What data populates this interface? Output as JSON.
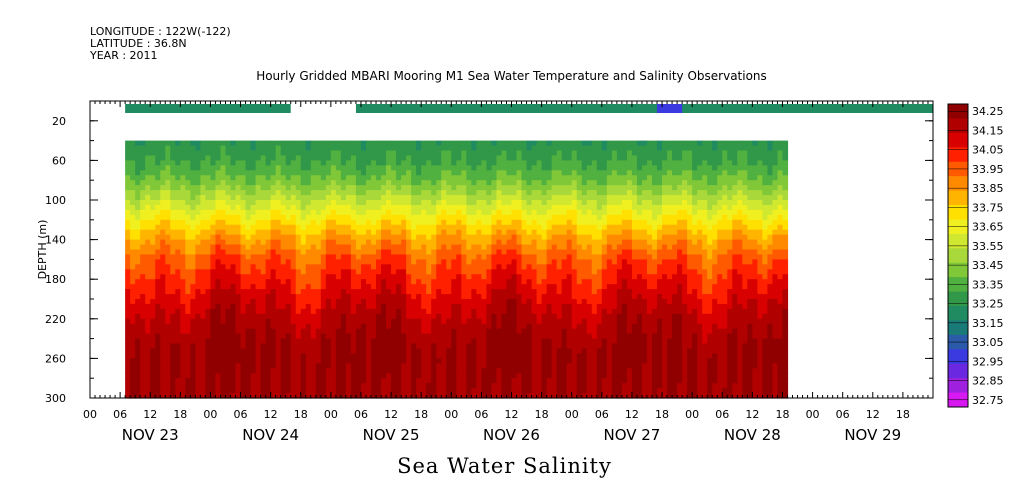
{
  "header": {
    "longitude": "LONGITUDE : 122W(-122)",
    "latitude": "LATITUDE : 36.8N",
    "year": "YEAR : 2011"
  },
  "chart_title": "Hourly Gridded MBARI Mooring M1 Sea Water Temperature and Salinity Observations",
  "bottom_title": "Sea Water Salinity",
  "chart_data": {
    "type": "heatmap",
    "title": "Hourly Gridded MBARI Mooring M1 Sea Water Temperature and Salinity Observations",
    "xlabel": "",
    "ylabel": "DEPTH (m)",
    "x_range_hours": [
      0,
      168
    ],
    "x_hour_tick_labels": [
      "00",
      "06",
      "12",
      "18",
      "00",
      "06",
      "12",
      "18",
      "00",
      "06",
      "12",
      "18",
      "00",
      "06",
      "12",
      "18",
      "00",
      "06",
      "12",
      "18",
      "00",
      "06",
      "12",
      "18",
      "00",
      "06",
      "12",
      "18"
    ],
    "x_day_labels": [
      "NOV 23",
      "NOV 24",
      "NOV 25",
      "NOV 26",
      "NOV 27",
      "NOV 28",
      "NOV 29"
    ],
    "ylim": [
      300,
      0
    ],
    "y_tick_labels": [
      "20",
      "60",
      "100",
      "140",
      "180",
      "220",
      "260",
      "300"
    ],
    "colorbar_levels": [
      "34.25",
      "34.15",
      "34.05",
      "33.95",
      "33.85",
      "33.75",
      "33.65",
      "33.55",
      "33.45",
      "33.35",
      "33.25",
      "33.15",
      "33.05",
      "32.95",
      "32.85",
      "32.75"
    ],
    "colorbar_colors": [
      "#900000",
      "#b00000",
      "#d80000",
      "#ff2000",
      "#ff5a00",
      "#ff8a00",
      "#ffb400",
      "#ffe000",
      "#f0f020",
      "#d0e830",
      "#a8d83a",
      "#80c838",
      "#50b040",
      "#309848",
      "#208a60",
      "#1a7a78",
      "#2a5aa8",
      "#3a3ae0",
      "#6a28e0",
      "#a020e0",
      "#d818f0"
    ],
    "surface_sensor_segments": [
      {
        "start_hour": 7,
        "end_hour": 40,
        "level": 33.2
      },
      {
        "start_hour": 53,
        "end_hour": 168,
        "level": 33.2
      },
      {
        "start_hour": 113,
        "end_hour": 118,
        "level": 32.95
      }
    ],
    "profile_coverage": {
      "start_hour": 7,
      "end_hour": 139,
      "top_depth_m": 40,
      "bottom_depth_m": 300
    },
    "depth_profile_mean": [
      {
        "depth": 40,
        "value": 33.25
      },
      {
        "depth": 60,
        "value": 33.3
      },
      {
        "depth": 80,
        "value": 33.4
      },
      {
        "depth": 100,
        "value": 33.55
      },
      {
        "depth": 120,
        "value": 33.7
      },
      {
        "depth": 140,
        "value": 33.85
      },
      {
        "depth": 160,
        "value": 33.97
      },
      {
        "depth": 180,
        "value": 34.05
      },
      {
        "depth": 200,
        "value": 34.12
      },
      {
        "depth": 220,
        "value": 34.18
      },
      {
        "depth": 240,
        "value": 34.22
      },
      {
        "depth": 260,
        "value": 34.24
      },
      {
        "depth": 300,
        "value": 34.22
      }
    ]
  }
}
